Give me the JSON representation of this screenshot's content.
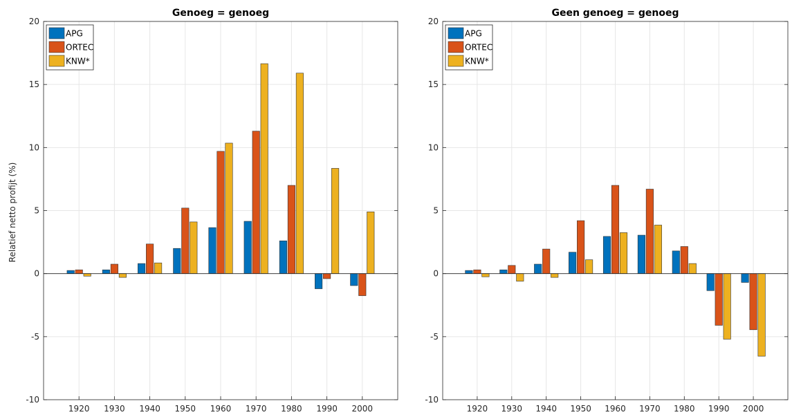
{
  "ylabel": "Relatief netto profijt (%)",
  "colors": {
    "APG": "#0072bd",
    "ORTEC": "#d95319",
    "KNW*": "#edb120"
  },
  "chart_data": [
    {
      "type": "bar",
      "title": "Genoeg = genoeg",
      "xlabel": "",
      "ylabel": "Relatief netto profijt (%)",
      "categories": [
        "1920",
        "1930",
        "1940",
        "1950",
        "1960",
        "1970",
        "1980",
        "1990",
        "2000"
      ],
      "ylim": [
        -10,
        20
      ],
      "yticks": [
        -10,
        -5,
        0,
        5,
        10,
        15,
        20
      ],
      "grid": true,
      "legend_position": "top-left",
      "series": [
        {
          "name": "APG",
          "color": "#0072bd",
          "values": [
            0.25,
            0.3,
            0.8,
            2.0,
            3.65,
            4.15,
            2.6,
            -1.2,
            -0.95
          ]
        },
        {
          "name": "ORTEC",
          "color": "#d95319",
          "values": [
            0.3,
            0.75,
            2.35,
            5.2,
            9.7,
            11.3,
            7.0,
            -0.4,
            -1.75
          ]
        },
        {
          "name": "KNW*",
          "color": "#edb120",
          "values": [
            -0.2,
            -0.3,
            0.85,
            4.1,
            10.35,
            16.65,
            15.9,
            8.35,
            4.9
          ]
        }
      ]
    },
    {
      "type": "bar",
      "title": "Geen genoeg = genoeg",
      "xlabel": "",
      "ylabel": "",
      "categories": [
        "1920",
        "1930",
        "1940",
        "1950",
        "1960",
        "1970",
        "1980",
        "1990",
        "2000"
      ],
      "ylim": [
        -10,
        20
      ],
      "yticks": [
        -10,
        -5,
        0,
        5,
        10,
        15,
        20
      ],
      "grid": true,
      "legend_position": "top-left",
      "series": [
        {
          "name": "APG",
          "color": "#0072bd",
          "values": [
            0.25,
            0.3,
            0.75,
            1.7,
            2.95,
            3.05,
            1.8,
            -1.35,
            -0.7
          ]
        },
        {
          "name": "ORTEC",
          "color": "#d95319",
          "values": [
            0.3,
            0.65,
            1.95,
            4.2,
            7.0,
            6.7,
            2.15,
            -4.1,
            -4.45
          ]
        },
        {
          "name": "KNW*",
          "color": "#edb120",
          "values": [
            -0.25,
            -0.6,
            -0.3,
            1.1,
            3.25,
            3.85,
            0.8,
            -5.2,
            -6.55
          ]
        }
      ]
    }
  ]
}
